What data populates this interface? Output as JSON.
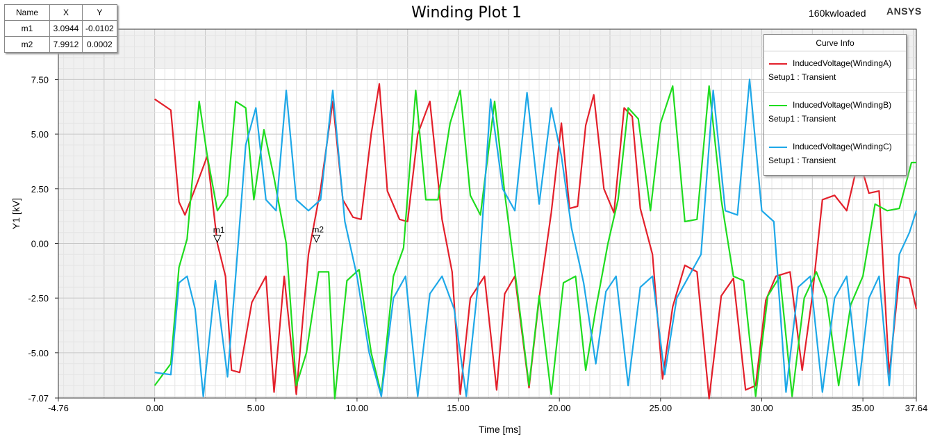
{
  "header": {
    "title": "Winding Plot 1",
    "design_name": "160kwloaded",
    "brand": "ANSYS"
  },
  "marker_table": {
    "columns": [
      "Name",
      "X",
      "Y"
    ],
    "rows": [
      {
        "name": "m1",
        "x": "3.0944",
        "y": "-0.0102"
      },
      {
        "name": "m2",
        "x": "7.9912",
        "y": "0.0002"
      }
    ]
  },
  "legend": {
    "title": "Curve Info",
    "entries": [
      {
        "name": "InducedVoltage(WindingA)",
        "setup": "Setup1 : Transient"
      },
      {
        "name": "InducedVoltage(WindingB)",
        "setup": "Setup1 : Transient"
      },
      {
        "name": "InducedVoltage(WindingC)",
        "setup": "Setup1 : Transient"
      }
    ]
  },
  "chart_data": {
    "type": "line",
    "title": "Winding Plot 1",
    "xlabel": "Time [ms]",
    "ylabel": "Y1 [kV]",
    "xlim": [
      -4.76,
      37.64
    ],
    "ylim": [
      -7.07,
      9.8
    ],
    "data_region_ylim": [
      -7.07,
      8.0
    ],
    "x_ticks": [
      "-4.76",
      "0.00",
      "5.00",
      "10.00",
      "15.00",
      "20.00",
      "25.00",
      "30.00",
      "35.00",
      "37.64"
    ],
    "x_tick_values": [
      -4.76,
      0,
      5,
      10,
      15,
      20,
      25,
      30,
      35,
      37.64
    ],
    "y_ticks": [
      "-7.07",
      "-5.00",
      "-2.50",
      "0.00",
      "2.50",
      "5.00",
      "7.50"
    ],
    "y_tick_values": [
      -7.07,
      -5,
      -2.5,
      0,
      2.5,
      5,
      7.5
    ],
    "grid": true,
    "legend_position": "top-right",
    "colors": {
      "WindingA": "#e3202b",
      "WindingB": "#1fdc1f",
      "WindingC": "#1ea8e8"
    },
    "markers": [
      {
        "name": "m1",
        "x": 3.0944,
        "y": -0.0102
      },
      {
        "name": "m2",
        "x": 7.9912,
        "y": 0.0002
      }
    ],
    "series": [
      {
        "name": "InducedVoltage(WindingA)",
        "color": "#e3202b",
        "x": [
          0,
          0.8,
          1.2,
          1.5,
          2.2,
          2.6,
          3.1,
          3.5,
          3.8,
          4.2,
          4.8,
          5.5,
          5.9,
          6.4,
          7.0,
          7.6,
          8.2,
          8.8,
          9.3,
          9.8,
          10.2,
          10.7,
          11.1,
          11.5,
          12.1,
          12.5,
          13.0,
          13.6,
          14.2,
          14.7,
          15.1,
          15.6,
          16.3,
          16.9,
          17.3,
          17.8,
          18.5,
          19.0,
          19.6,
          20.1,
          20.5,
          20.9,
          21.3,
          21.7,
          22.2,
          22.7,
          23.2,
          23.6,
          24.0,
          24.6,
          25.1,
          25.6,
          26.2,
          26.8,
          27.4,
          28.0,
          28.6,
          29.2,
          29.7,
          30.2,
          30.7,
          31.4,
          32.0,
          32.5,
          33.0,
          33.6,
          34.2,
          34.8,
          35.3,
          35.8,
          36.3,
          36.8,
          37.3,
          37.64
        ],
        "y": [
          6.6,
          6.1,
          1.9,
          1.3,
          3.0,
          4.0,
          0.0,
          -1.5,
          -5.8,
          -5.9,
          -2.7,
          -1.5,
          -6.8,
          -1.5,
          -6.9,
          -0.5,
          2.5,
          6.5,
          2.0,
          1.2,
          1.1,
          5.0,
          7.3,
          2.4,
          1.1,
          1.0,
          5.0,
          6.5,
          1.1,
          -1.3,
          -6.9,
          -2.5,
          -1.5,
          -6.7,
          -2.3,
          -1.5,
          -6.6,
          -2.5,
          1.4,
          5.5,
          1.6,
          1.7,
          5.4,
          6.8,
          2.5,
          1.4,
          6.2,
          5.8,
          1.6,
          -0.5,
          -6.2,
          -2.9,
          -1.0,
          -1.3,
          -7.1,
          -2.4,
          -1.6,
          -6.7,
          -6.5,
          -2.6,
          -1.5,
          -1.3,
          -5.8,
          -2.4,
          2.0,
          2.2,
          1.5,
          3.9,
          2.3,
          2.4,
          -6.0,
          -1.5,
          -1.6,
          -3.0
        ]
      },
      {
        "name": "InducedVoltage(WindingB)",
        "color": "#1fdc1f",
        "x": [
          0,
          0.8,
          1.2,
          1.6,
          2.2,
          2.6,
          3.1,
          3.6,
          4.0,
          4.5,
          4.9,
          5.4,
          5.9,
          6.5,
          7.0,
          7.5,
          8.1,
          8.6,
          8.9,
          9.5,
          10.1,
          10.7,
          11.2,
          11.8,
          12.3,
          12.9,
          13.4,
          14.0,
          14.6,
          15.1,
          15.6,
          16.1,
          16.8,
          17.3,
          17.9,
          18.5,
          19.0,
          19.6,
          20.2,
          20.8,
          21.3,
          21.8,
          22.4,
          22.9,
          23.4,
          23.9,
          24.5,
          25.0,
          25.6,
          26.2,
          26.8,
          27.4,
          28.0,
          28.6,
          29.1,
          29.7,
          30.3,
          30.9,
          31.5,
          32.1,
          32.7,
          33.2,
          33.8,
          34.4,
          35.0,
          35.6,
          36.2,
          36.8,
          37.4,
          37.64
        ],
        "y": [
          -6.5,
          -5.5,
          -1.1,
          0.2,
          6.5,
          4.0,
          1.5,
          2.2,
          6.5,
          6.2,
          2.0,
          5.2,
          3.0,
          0.0,
          -6.5,
          -5.0,
          -1.3,
          -1.3,
          -7.1,
          -1.7,
          -1.2,
          -5.0,
          -6.9,
          -1.5,
          -0.2,
          7.0,
          2.0,
          2.0,
          5.5,
          7.0,
          2.2,
          1.3,
          6.5,
          2.3,
          -2.0,
          -6.5,
          -2.4,
          -6.9,
          -1.8,
          -1.5,
          -5.8,
          -3.0,
          0.0,
          2.0,
          6.2,
          5.7,
          1.5,
          5.5,
          7.2,
          1.0,
          1.1,
          7.2,
          2.0,
          -1.5,
          -1.7,
          -7.0,
          -2.4,
          -1.5,
          -7.0,
          -2.5,
          -1.3,
          -2.5,
          -6.5,
          -2.8,
          -1.5,
          1.8,
          1.5,
          1.6,
          3.7,
          3.7
        ]
      },
      {
        "name": "InducedVoltage(WindingC)",
        "color": "#1ea8e8",
        "x": [
          0,
          0.8,
          1.2,
          1.6,
          2.0,
          2.4,
          3.0,
          3.6,
          4.0,
          4.5,
          5.0,
          5.5,
          6.0,
          6.5,
          7.0,
          7.6,
          8.2,
          8.8,
          9.4,
          10.0,
          10.6,
          11.2,
          11.8,
          12.4,
          13.0,
          13.6,
          14.2,
          14.8,
          15.4,
          16.0,
          16.6,
          17.2,
          17.8,
          18.4,
          19.0,
          19.6,
          20.1,
          20.6,
          21.2,
          21.8,
          22.3,
          22.8,
          23.4,
          24.0,
          24.6,
          25.2,
          25.8,
          26.4,
          27.0,
          27.6,
          28.2,
          28.8,
          29.4,
          30.0,
          30.6,
          31.2,
          31.8,
          32.4,
          33.0,
          33.6,
          34.2,
          34.8,
          35.3,
          35.8,
          36.3,
          36.8,
          37.3,
          37.64
        ],
        "y": [
          -5.9,
          -6.0,
          -1.8,
          -1.5,
          -3.0,
          -7.0,
          -1.7,
          -6.1,
          -1.5,
          4.5,
          6.2,
          2.0,
          1.5,
          7.0,
          2.0,
          1.5,
          2.0,
          7.0,
          1.0,
          -1.5,
          -5.0,
          -7.0,
          -2.5,
          -1.5,
          -7.0,
          -2.3,
          -1.5,
          -3.0,
          -7.0,
          -1.7,
          6.6,
          2.5,
          1.5,
          6.9,
          1.8,
          6.2,
          4.0,
          0.7,
          -1.8,
          -5.5,
          -2.2,
          -1.5,
          -6.5,
          -2.0,
          -1.5,
          -6.0,
          -2.5,
          -1.5,
          -0.5,
          7.0,
          1.5,
          1.3,
          7.5,
          1.5,
          1.0,
          -6.8,
          -2.0,
          -1.5,
          -6.8,
          -2.5,
          -1.5,
          -6.5,
          -2.5,
          -1.5,
          -6.5,
          -0.5,
          0.5,
          1.5
        ]
      }
    ]
  }
}
